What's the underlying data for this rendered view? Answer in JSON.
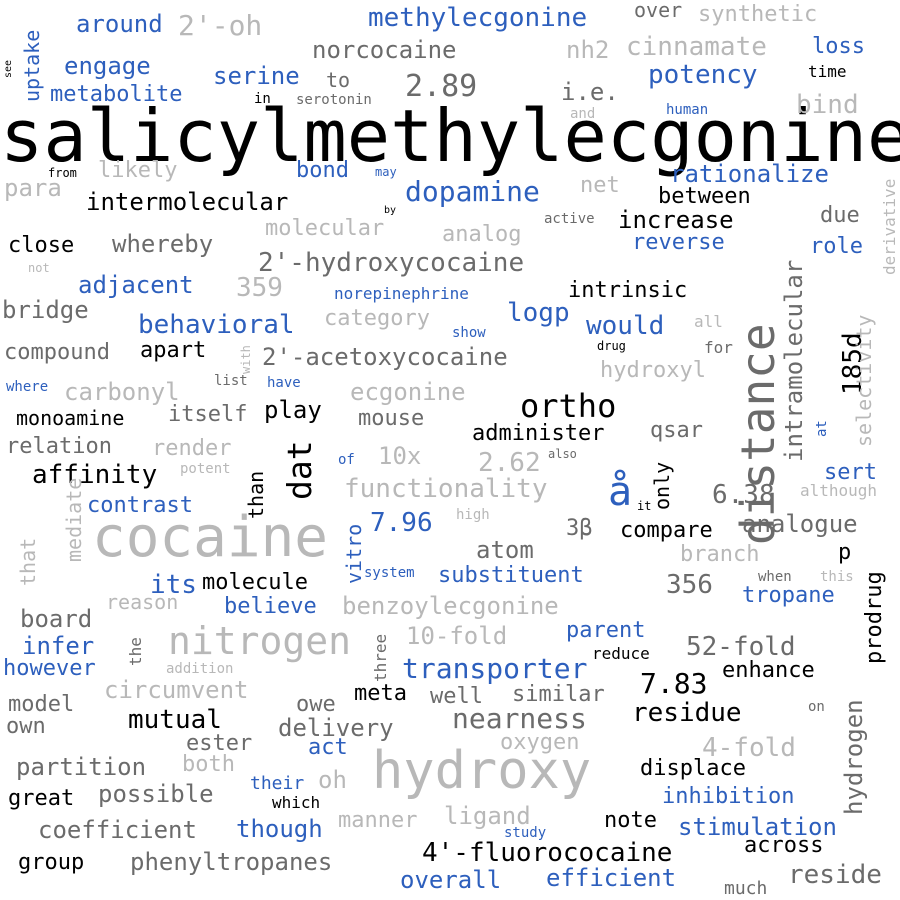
{
  "palette": {
    "black": "#000000",
    "blue": "#2d5fbd",
    "gray": "#6b6b6b",
    "lightgray": "#b8b8b8"
  },
  "words": [
    {
      "text": "salicylmethylecgonine",
      "color": "black"
    },
    {
      "text": "cocaine",
      "color": "lightgray"
    },
    {
      "text": "distance",
      "color": "gray"
    },
    {
      "text": "hydroxy",
      "color": "lightgray"
    },
    {
      "text": "dat",
      "color": "black"
    },
    {
      "text": "nitrogen",
      "color": "lightgray"
    },
    {
      "text": "å",
      "color": "blue"
    },
    {
      "text": "ortho",
      "color": "black"
    },
    {
      "text": "methylecgonine",
      "color": "blue"
    },
    {
      "text": "dopamine",
      "color": "blue"
    },
    {
      "text": "transporter",
      "color": "blue"
    },
    {
      "text": "2'-hydroxycocaine",
      "color": "gray"
    },
    {
      "text": "2'-acetoxycocaine",
      "color": "gray"
    },
    {
      "text": "4'-fluorococaine",
      "color": "black"
    },
    {
      "text": "intramolecular",
      "color": "gray"
    },
    {
      "text": "185d",
      "color": "black"
    },
    {
      "text": "hydrogen",
      "color": "gray"
    },
    {
      "text": "nearness",
      "color": "gray"
    },
    {
      "text": "2'-oh",
      "color": "lightgray"
    },
    {
      "text": "norcocaine",
      "color": "gray"
    },
    {
      "text": "2.89",
      "color": "gray"
    },
    {
      "text": "potency",
      "color": "blue"
    },
    {
      "text": "intermolecular",
      "color": "black"
    },
    {
      "text": "rationalize",
      "color": "blue"
    },
    {
      "text": "increase",
      "color": "black"
    },
    {
      "text": "reverse",
      "color": "blue"
    },
    {
      "text": "between",
      "color": "black"
    },
    {
      "text": "intrinsic",
      "color": "black"
    },
    {
      "text": "behavioral",
      "color": "blue"
    },
    {
      "text": "logp",
      "color": "blue"
    },
    {
      "text": "would",
      "color": "blue"
    },
    {
      "text": "adjacent",
      "color": "blue"
    },
    {
      "text": "359",
      "color": "lightgray"
    },
    {
      "text": "apart",
      "color": "black"
    },
    {
      "text": "compound",
      "color": "gray"
    },
    {
      "text": "hydroxyl",
      "color": "lightgray"
    },
    {
      "text": "ecgonine",
      "color": "lightgray"
    },
    {
      "text": "carbonyl",
      "color": "lightgray"
    },
    {
      "text": "monoamine",
      "color": "black"
    },
    {
      "text": "itself",
      "color": "gray"
    },
    {
      "text": "play",
      "color": "black"
    },
    {
      "text": "mouse",
      "color": "gray"
    },
    {
      "text": "administer",
      "color": "black"
    },
    {
      "text": "qsar",
      "color": "gray"
    },
    {
      "text": "relation",
      "color": "gray"
    },
    {
      "text": "render",
      "color": "lightgray"
    },
    {
      "text": "10x",
      "color": "lightgray"
    },
    {
      "text": "2.62",
      "color": "lightgray"
    },
    {
      "text": "affinity",
      "color": "black"
    },
    {
      "text": "functionality",
      "color": "lightgray"
    },
    {
      "text": "6.38",
      "color": "gray"
    },
    {
      "text": "contrast",
      "color": "blue"
    },
    {
      "text": "7.96",
      "color": "blue"
    },
    {
      "text": "compare",
      "color": "black"
    },
    {
      "text": "analogue",
      "color": "gray"
    },
    {
      "text": "atom",
      "color": "gray"
    },
    {
      "text": "3β",
      "color": "gray"
    },
    {
      "text": "branch",
      "color": "lightgray"
    },
    {
      "text": "p",
      "color": "black"
    },
    {
      "text": "its",
      "color": "blue"
    },
    {
      "text": "molecule",
      "color": "black"
    },
    {
      "text": "substituent",
      "color": "blue"
    },
    {
      "text": "356",
      "color": "gray"
    },
    {
      "text": "tropane",
      "color": "blue"
    },
    {
      "text": "board",
      "color": "gray"
    },
    {
      "text": "reason",
      "color": "lightgray"
    },
    {
      "text": "believe",
      "color": "blue"
    },
    {
      "text": "benzoylecgonine",
      "color": "lightgray"
    },
    {
      "text": "infer",
      "color": "blue"
    },
    {
      "text": "10-fold",
      "color": "lightgray"
    },
    {
      "text": "parent",
      "color": "blue"
    },
    {
      "text": "however",
      "color": "blue"
    },
    {
      "text": "52-fold",
      "color": "gray"
    },
    {
      "text": "7.83",
      "color": "black"
    },
    {
      "text": "enhance",
      "color": "black"
    },
    {
      "text": "circumvent",
      "color": "lightgray"
    },
    {
      "text": "meta",
      "color": "black"
    },
    {
      "text": "well",
      "color": "gray"
    },
    {
      "text": "similar",
      "color": "gray"
    },
    {
      "text": "residue",
      "color": "black"
    },
    {
      "text": "model",
      "color": "gray"
    },
    {
      "text": "mutual",
      "color": "black"
    },
    {
      "text": "owe",
      "color": "gray"
    },
    {
      "text": "own",
      "color": "gray"
    },
    {
      "text": "delivery",
      "color": "gray"
    },
    {
      "text": "ester",
      "color": "gray"
    },
    {
      "text": "act",
      "color": "blue"
    },
    {
      "text": "oxygen",
      "color": "lightgray"
    },
    {
      "text": "4-fold",
      "color": "lightgray"
    },
    {
      "text": "partition",
      "color": "gray"
    },
    {
      "text": "both",
      "color": "lightgray"
    },
    {
      "text": "oh",
      "color": "lightgray"
    },
    {
      "text": "displace",
      "color": "black"
    },
    {
      "text": "great",
      "color": "black"
    },
    {
      "text": "possible",
      "color": "gray"
    },
    {
      "text": "their",
      "color": "blue"
    },
    {
      "text": "inhibition",
      "color": "blue"
    },
    {
      "text": "which",
      "color": "black"
    },
    {
      "text": "coefficient",
      "color": "gray"
    },
    {
      "text": "though",
      "color": "blue"
    },
    {
      "text": "manner",
      "color": "lightgray"
    },
    {
      "text": "ligand",
      "color": "lightgray"
    },
    {
      "text": "note",
      "color": "black"
    },
    {
      "text": "stimulation",
      "color": "blue"
    },
    {
      "text": "group",
      "color": "black"
    },
    {
      "text": "phenyltropanes",
      "color": "gray"
    },
    {
      "text": "study",
      "color": "blue"
    },
    {
      "text": "across",
      "color": "black"
    },
    {
      "text": "overall",
      "color": "blue"
    },
    {
      "text": "efficient",
      "color": "blue"
    },
    {
      "text": "much",
      "color": "gray"
    },
    {
      "text": "reside",
      "color": "gray"
    },
    {
      "text": "around",
      "color": "blue"
    },
    {
      "text": "engage",
      "color": "blue"
    },
    {
      "text": "metabolite",
      "color": "blue"
    },
    {
      "text": "serine",
      "color": "blue"
    },
    {
      "text": "to",
      "color": "gray"
    },
    {
      "text": "in",
      "color": "black"
    },
    {
      "text": "serotonin",
      "color": "gray"
    },
    {
      "text": "over",
      "color": "gray"
    },
    {
      "text": "synthetic",
      "color": "lightgray"
    },
    {
      "text": "cinnamate",
      "color": "lightgray"
    },
    {
      "text": "loss",
      "color": "blue"
    },
    {
      "text": "time",
      "color": "black"
    },
    {
      "text": "nh2",
      "color": "lightgray"
    },
    {
      "text": "i.e.",
      "color": "gray"
    },
    {
      "text": "and",
      "color": "lightgray"
    },
    {
      "text": "human",
      "color": "blue"
    },
    {
      "text": "bind",
      "color": "lightgray"
    },
    {
      "text": "para",
      "color": "lightgray"
    },
    {
      "text": "from",
      "color": "black"
    },
    {
      "text": "likely",
      "color": "lightgray"
    },
    {
      "text": "bond",
      "color": "blue"
    },
    {
      "text": "may",
      "color": "blue"
    },
    {
      "text": "net",
      "color": "lightgray"
    },
    {
      "text": "by",
      "color": "black"
    },
    {
      "text": "active",
      "color": "gray"
    },
    {
      "text": "due",
      "color": "gray"
    },
    {
      "text": "close",
      "color": "black"
    },
    {
      "text": "whereby",
      "color": "gray"
    },
    {
      "text": "molecular",
      "color": "lightgray"
    },
    {
      "text": "analog",
      "color": "lightgray"
    },
    {
      "text": "role",
      "color": "blue"
    },
    {
      "text": "not",
      "color": "lightgray"
    },
    {
      "text": "bridge",
      "color": "gray"
    },
    {
      "text": "norepinephrine",
      "color": "blue"
    },
    {
      "text": "category",
      "color": "lightgray"
    },
    {
      "text": "show",
      "color": "blue"
    },
    {
      "text": "all",
      "color": "lightgray"
    },
    {
      "text": "drug",
      "color": "black"
    },
    {
      "text": "for",
      "color": "gray"
    },
    {
      "text": "list",
      "color": "gray"
    },
    {
      "text": "have",
      "color": "blue"
    },
    {
      "text": "where",
      "color": "blue"
    },
    {
      "text": "potent",
      "color": "lightgray"
    },
    {
      "text": "of",
      "color": "blue"
    },
    {
      "text": "also",
      "color": "gray"
    },
    {
      "text": "sert",
      "color": "blue"
    },
    {
      "text": "although",
      "color": "lightgray"
    },
    {
      "text": "it",
      "color": "black"
    },
    {
      "text": "high",
      "color": "lightgray"
    },
    {
      "text": "system",
      "color": "blue"
    },
    {
      "text": "when",
      "color": "gray"
    },
    {
      "text": "this",
      "color": "lightgray"
    },
    {
      "text": "addition",
      "color": "lightgray"
    },
    {
      "text": "reduce",
      "color": "black"
    },
    {
      "text": "on",
      "color": "gray"
    },
    {
      "text": "uptake",
      "color": "blue"
    },
    {
      "text": "see",
      "color": "black"
    },
    {
      "text": "derivative",
      "color": "lightgray"
    },
    {
      "text": "selectivity",
      "color": "lightgray"
    },
    {
      "text": "at",
      "color": "blue"
    },
    {
      "text": "only",
      "color": "black"
    },
    {
      "text": "vitro",
      "color": "blue"
    },
    {
      "text": "than",
      "color": "black"
    },
    {
      "text": "mediate",
      "color": "lightgray"
    },
    {
      "text": "that",
      "color": "lightgray"
    },
    {
      "text": "prodrug",
      "color": "black"
    },
    {
      "text": "the",
      "color": "gray"
    },
    {
      "text": "three",
      "color": "gray"
    },
    {
      "text": "with",
      "color": "lightgray"
    }
  ]
}
